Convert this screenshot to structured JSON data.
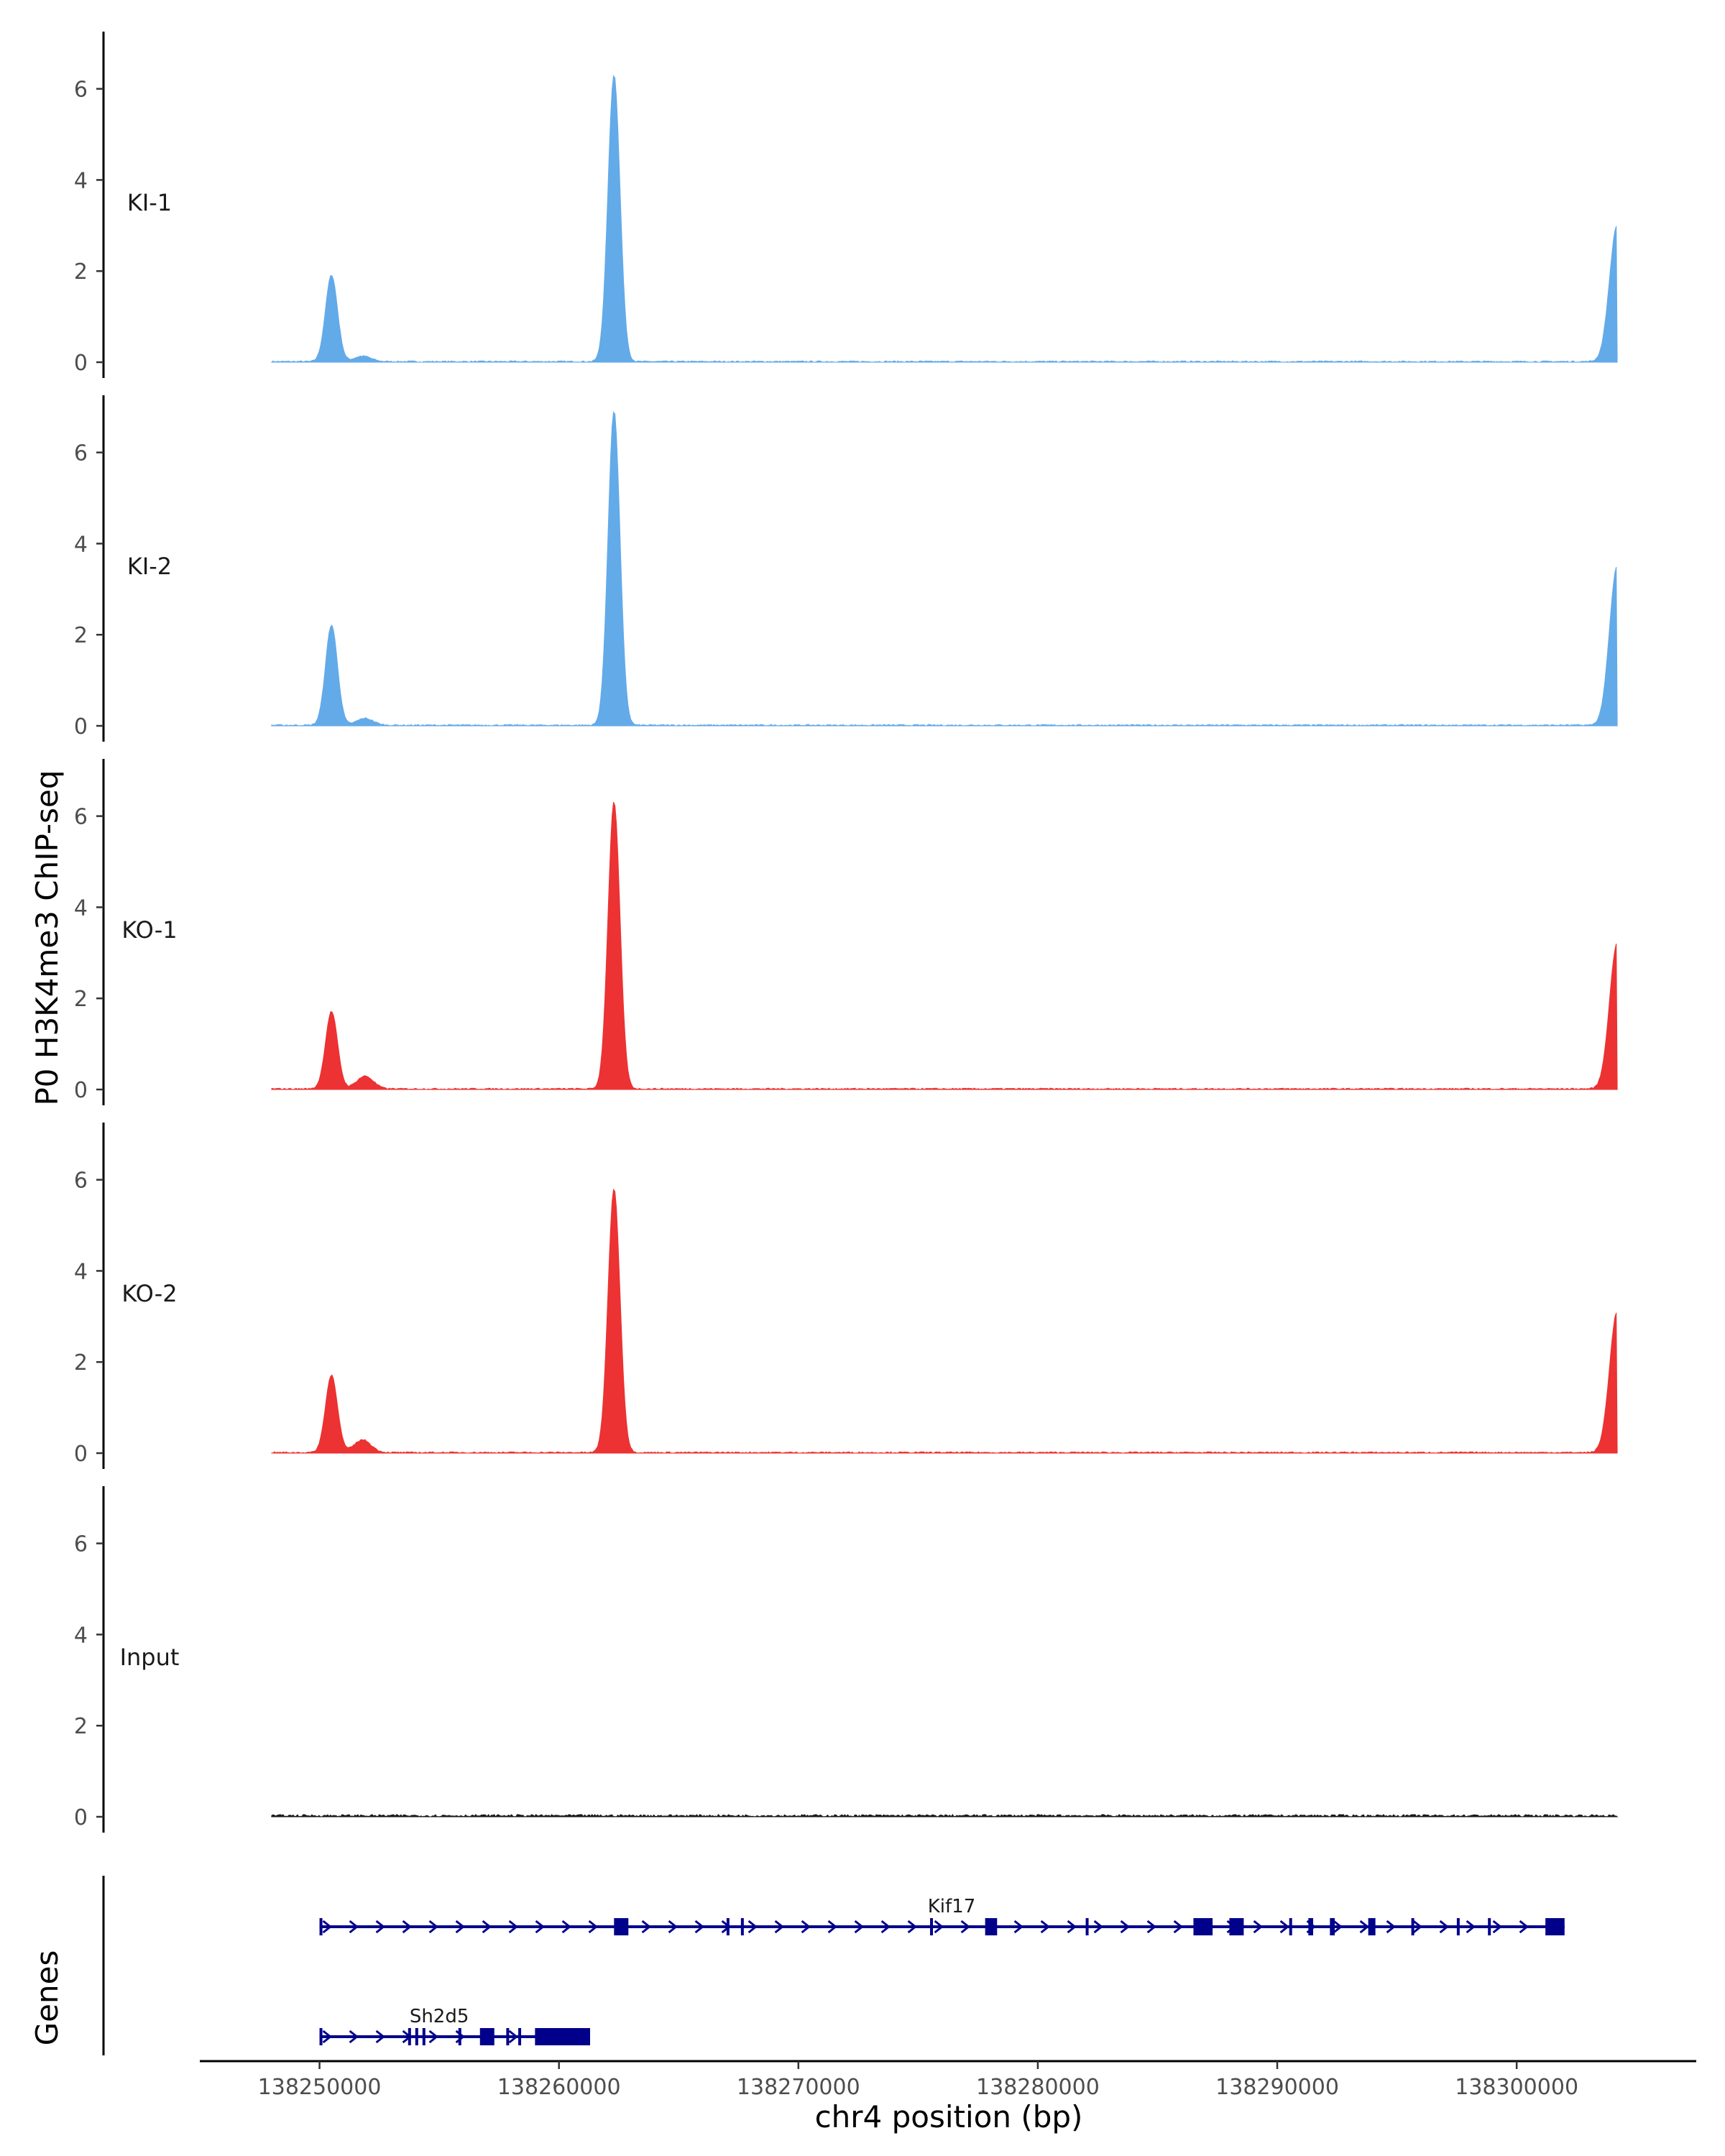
{
  "chart_data": {
    "type": "area",
    "y_axis_title": "P0 H3K4me3 ChIP-seq",
    "x_axis_title": "chr4 position (bp)",
    "genes_axis_title": "Genes",
    "xlim": [
      138245000,
      138307500
    ],
    "ylim": [
      0,
      7
    ],
    "y_ticks": [
      0,
      2,
      4,
      6
    ],
    "x_ticks": [
      138250000,
      138260000,
      138270000,
      138280000,
      138290000,
      138300000
    ],
    "x_tick_labels": [
      "138250000",
      "138260000",
      "138270000",
      "138280000",
      "138290000",
      "138300000"
    ],
    "track_range": [
      138248000,
      138304200
    ],
    "tracks": [
      {
        "label": "KI-1",
        "color": "#63aae9",
        "peaks": [
          {
            "x": 138250500,
            "y": 1.9
          },
          {
            "x": 138262300,
            "y": 6.3
          },
          {
            "x": 138304200,
            "y": 3.0
          }
        ],
        "minor": [
          {
            "x": 138251800,
            "y": 0.12
          }
        ]
      },
      {
        "label": "KI-2",
        "color": "#63aae9",
        "peaks": [
          {
            "x": 138250500,
            "y": 2.2
          },
          {
            "x": 138262300,
            "y": 6.9
          },
          {
            "x": 138304200,
            "y": 3.5
          }
        ],
        "minor": [
          {
            "x": 138251900,
            "y": 0.15
          }
        ]
      },
      {
        "label": "KO-1",
        "color": "#ec3232",
        "peaks": [
          {
            "x": 138250500,
            "y": 1.7
          },
          {
            "x": 138262300,
            "y": 6.3
          },
          {
            "x": 138304200,
            "y": 3.2
          }
        ],
        "minor": [
          {
            "x": 138251900,
            "y": 0.28
          }
        ]
      },
      {
        "label": "KO-2",
        "color": "#ec3232",
        "peaks": [
          {
            "x": 138250500,
            "y": 1.7
          },
          {
            "x": 138262300,
            "y": 5.8
          },
          {
            "x": 138304200,
            "y": 3.1
          }
        ],
        "minor": [
          {
            "x": 138251800,
            "y": 0.28
          }
        ]
      },
      {
        "label": "Input",
        "color": "#1a1a1a",
        "peaks": [],
        "minor": []
      }
    ],
    "genes": [
      {
        "name": "Sh2d5",
        "start": 138250000,
        "end": 138261300,
        "strand": "+",
        "exons": [
          [
            138250000,
            138250100
          ],
          [
            138253700,
            138253800
          ],
          [
            138254000,
            138254100
          ],
          [
            138254300,
            138254400
          ],
          [
            138255800,
            138255900
          ],
          [
            138256700,
            138257300
          ],
          [
            138257800,
            138257900
          ],
          [
            138258300,
            138258400
          ],
          [
            138259000,
            138261300
          ]
        ]
      },
      {
        "name": "Kif17",
        "start": 138250000,
        "end": 138302000,
        "strand": "+",
        "exons": [
          [
            138250000,
            138250100
          ],
          [
            138262300,
            138262900
          ],
          [
            138267000,
            138267100
          ],
          [
            138267600,
            138267700
          ],
          [
            138275500,
            138275600
          ],
          [
            138277800,
            138278300
          ],
          [
            138282000,
            138282100
          ],
          [
            138286500,
            138287300
          ],
          [
            138288000,
            138288600
          ],
          [
            138290500,
            138290600
          ],
          [
            138291300,
            138291500
          ],
          [
            138292200,
            138292400
          ],
          [
            138293800,
            138294100
          ],
          [
            138295600,
            138295700
          ],
          [
            138297500,
            138297600
          ],
          [
            138298800,
            138298900
          ],
          [
            138301200,
            138302000
          ]
        ]
      }
    ]
  }
}
